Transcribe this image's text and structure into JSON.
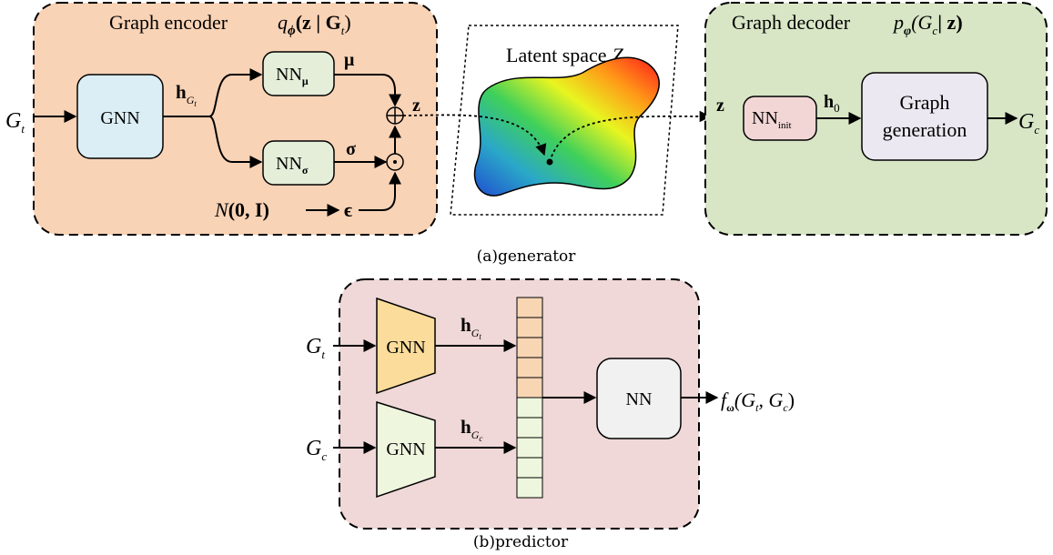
{
  "generator": {
    "caption": "(a)generator",
    "encoder": {
      "title": "Graph encoder",
      "math_q": "q",
      "math_phi": "ϕ",
      "math_arg": "(z | G",
      "math_sub": "t",
      "math_close": ")",
      "gnn_label": "GNN",
      "nn_mu_label": "NN",
      "nn_mu_sub": "μ",
      "nn_sigma_label": "NN",
      "nn_sigma_sub": "σ",
      "h_label": "h",
      "h_sub": "G",
      "h_subsub": "t",
      "mu_label": "μ",
      "sigma_label": "σ",
      "z_label": "z",
      "normal_label": "N",
      "normal_args": "(0, I)",
      "epsilon_label": "ϵ",
      "oplus": "⊕",
      "odot": "⊙"
    },
    "input": {
      "label": "G",
      "sub": "t"
    },
    "latent": {
      "title": "Latent space",
      "symbol": "Z"
    },
    "decoder": {
      "title": "Graph decoder",
      "math_p": "p",
      "math_phi": "φ",
      "math_arg_open": "(G",
      "math_sub": "c",
      "math_arg_close": "| z)",
      "z_label": "z",
      "nn_init_label": "NN",
      "nn_init_sub": "init",
      "h0_label": "h",
      "h0_sub": "0",
      "gen_line1": "Graph",
      "gen_line2": "generation"
    },
    "output": {
      "label": "G",
      "sub": "c"
    }
  },
  "predictor": {
    "caption": "(b)predictor",
    "input_t": {
      "label": "G",
      "sub": "t"
    },
    "input_c": {
      "label": "G",
      "sub": "c"
    },
    "gnn_top_label": "GNN",
    "gnn_bottom_label": "GNN",
    "h_t_label": "h",
    "h_t_sub": "G",
    "h_t_subsub": "t",
    "h_c_label": "h",
    "h_c_sub": "G",
    "h_c_subsub": "c",
    "nn_label": "NN",
    "output": {
      "f": "f",
      "sub": "ω",
      "args": "(G",
      "t": "t",
      "comma": ", G",
      "c": "c",
      "close": ")"
    }
  },
  "colors": {
    "encoder_bg": "#f9d3b6",
    "decoder_bg": "#d8e6c6",
    "predictor_bg": "#efd8d7",
    "gnn_blue": "#dbeef5",
    "nn_green": "#e4eed9",
    "nn_pink": "#f2d6d5",
    "gen_lilac": "#ece8f1",
    "gnn_orange": "#fbdc9b",
    "gnn_lightgreen": "#eef6de",
    "vec_orange": "#f8d6b4",
    "vec_green": "#eef7dd",
    "nn_gray": "#f1f1f1"
  },
  "icons": [
    "dashed-arrow-icon",
    "latent-blob-icon"
  ]
}
